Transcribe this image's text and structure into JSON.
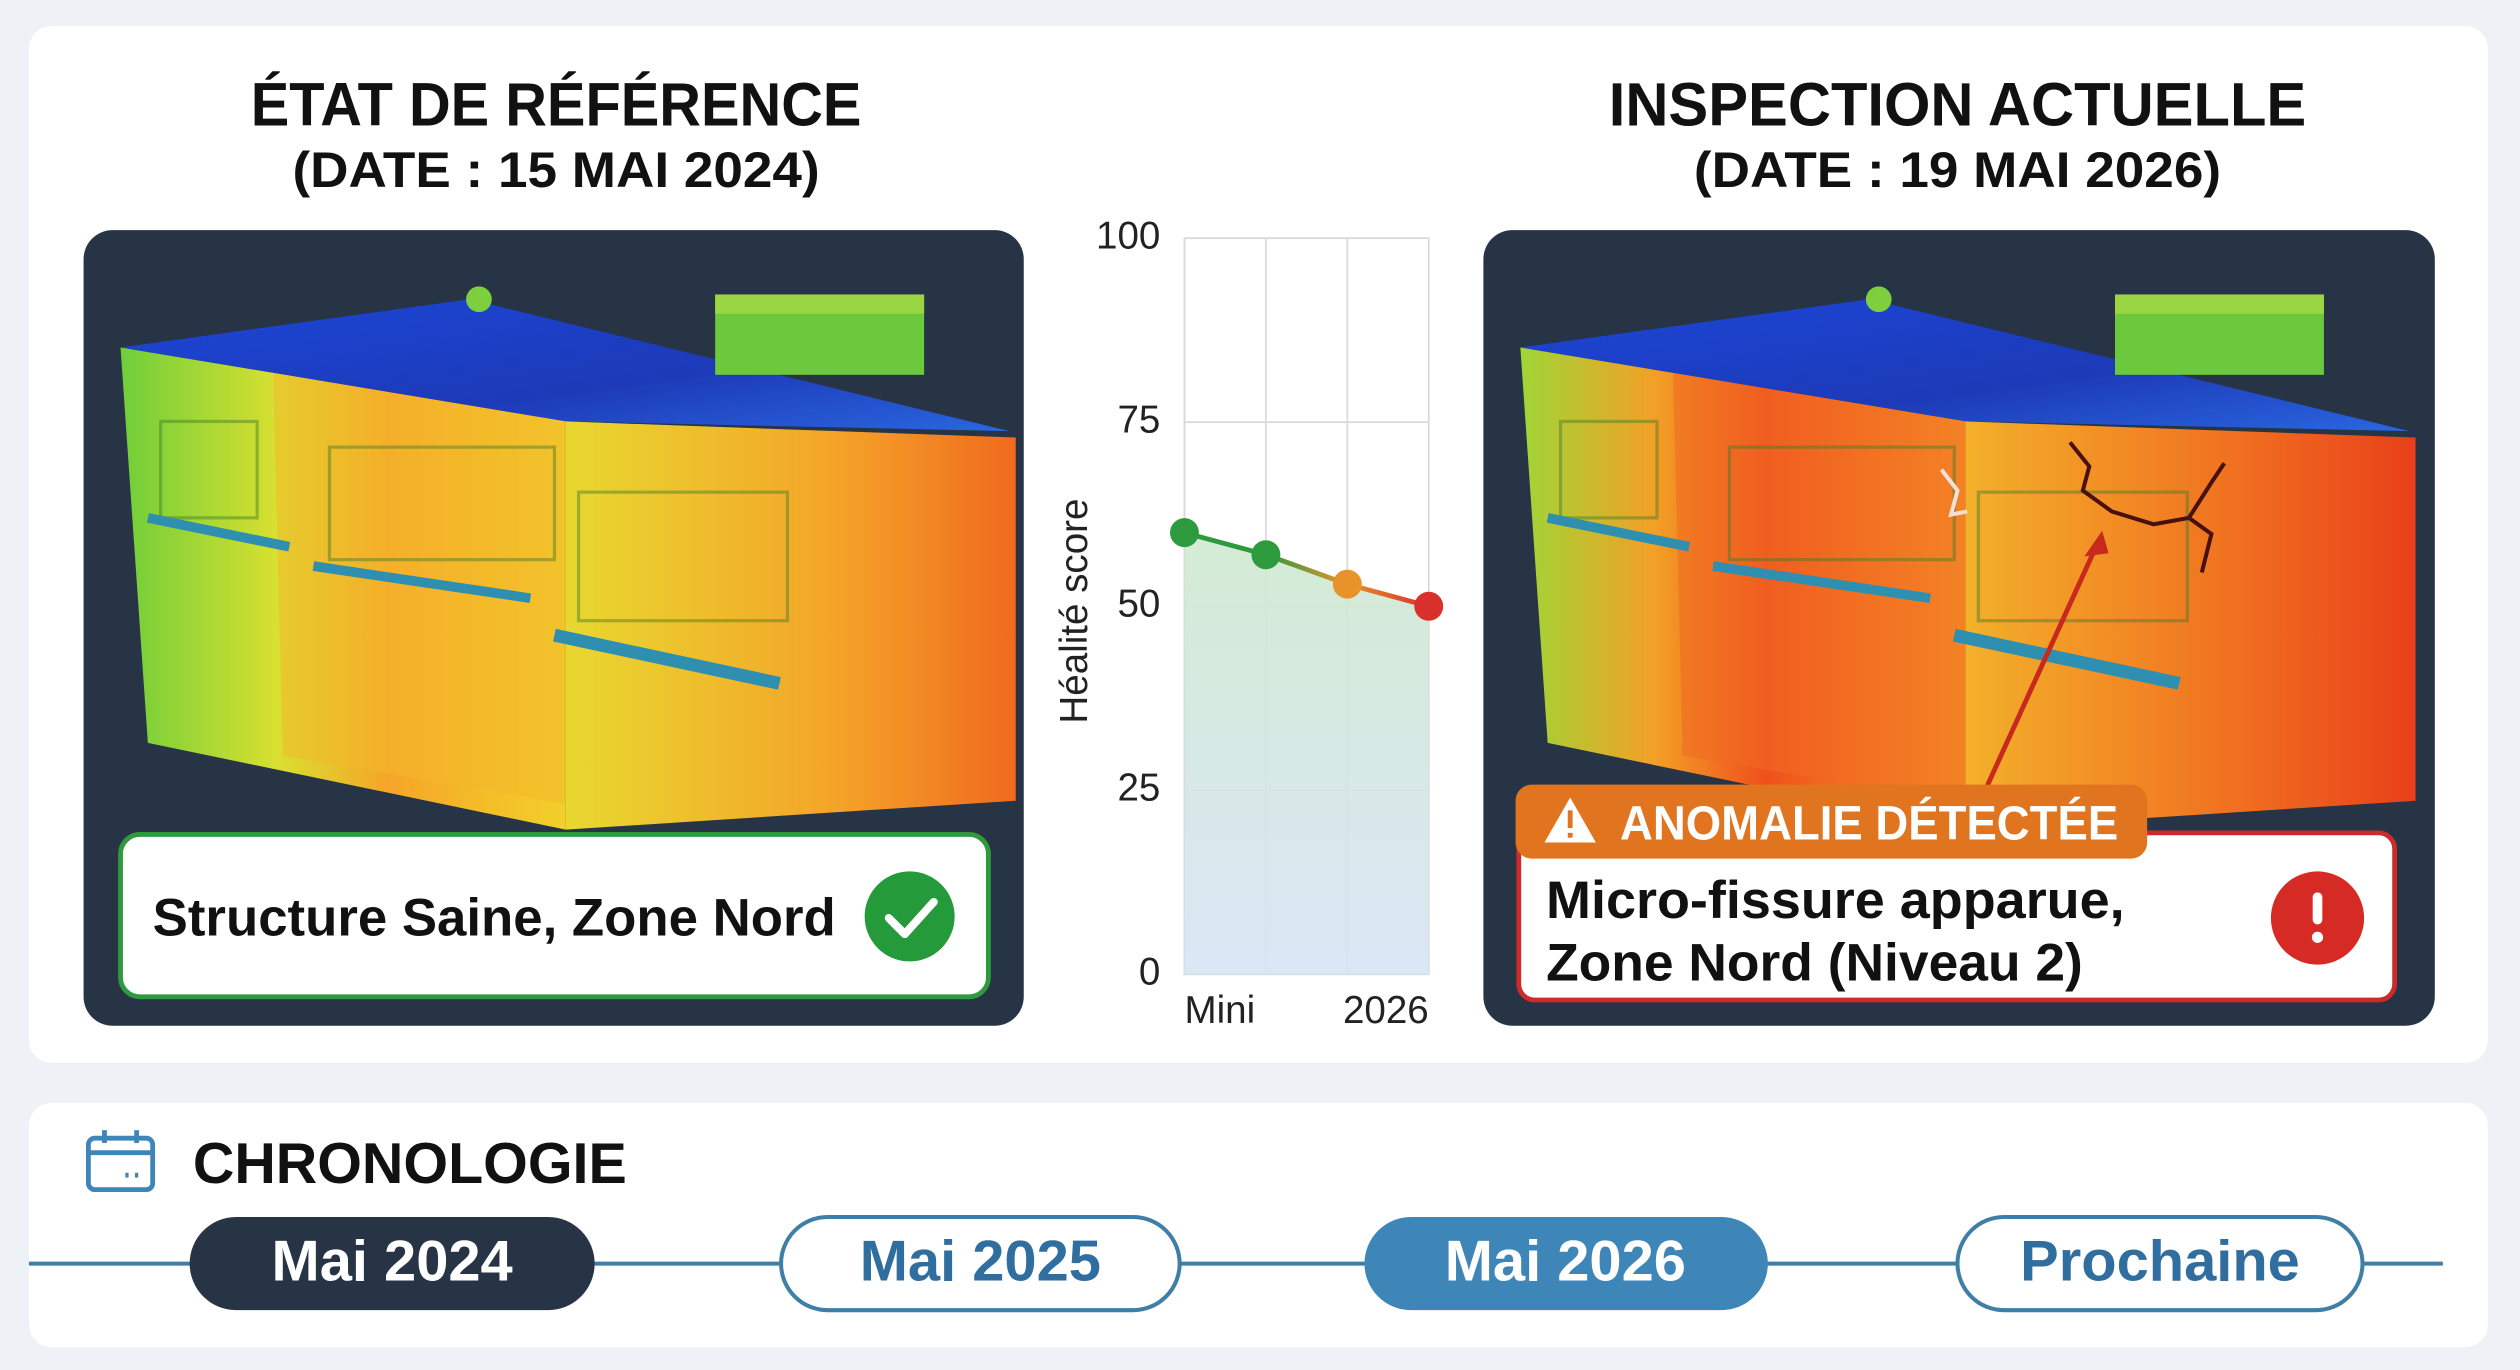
{
  "reference": {
    "title": "ÉTAT DE RÉFÉRENCE",
    "date": "(DATE : 15 MAI 2024)",
    "status": "Structure Saine, Zone Nord"
  },
  "chart_data": {
    "type": "line",
    "y_label": "Héalité score",
    "categories": [
      "Mini",
      null,
      null,
      "2026"
    ],
    "values": [
      60,
      57,
      53,
      50
    ],
    "colors": [
      "#2e9a3e",
      "#2e9a3e",
      "#e8922a",
      "#d9302b"
    ],
    "ylim": [
      0,
      100
    ],
    "yticks": [
      0,
      25,
      50,
      75,
      100
    ],
    "grid": true
  },
  "current": {
    "title": "INSPECTION ACTUELLE",
    "date": "(DATE : 19 MAI 2026)",
    "badge": "ANOMALIE DÉTECTÉE",
    "finding": [
      "Micro-fissure apparue,",
      "Zone Nord (Niveau 2)"
    ]
  },
  "timeline": {
    "title": "CHRONOLOGIE",
    "items": [
      "Mai 2024",
      "Mai 2025",
      "Mai 2026",
      "Prochaine"
    ]
  }
}
